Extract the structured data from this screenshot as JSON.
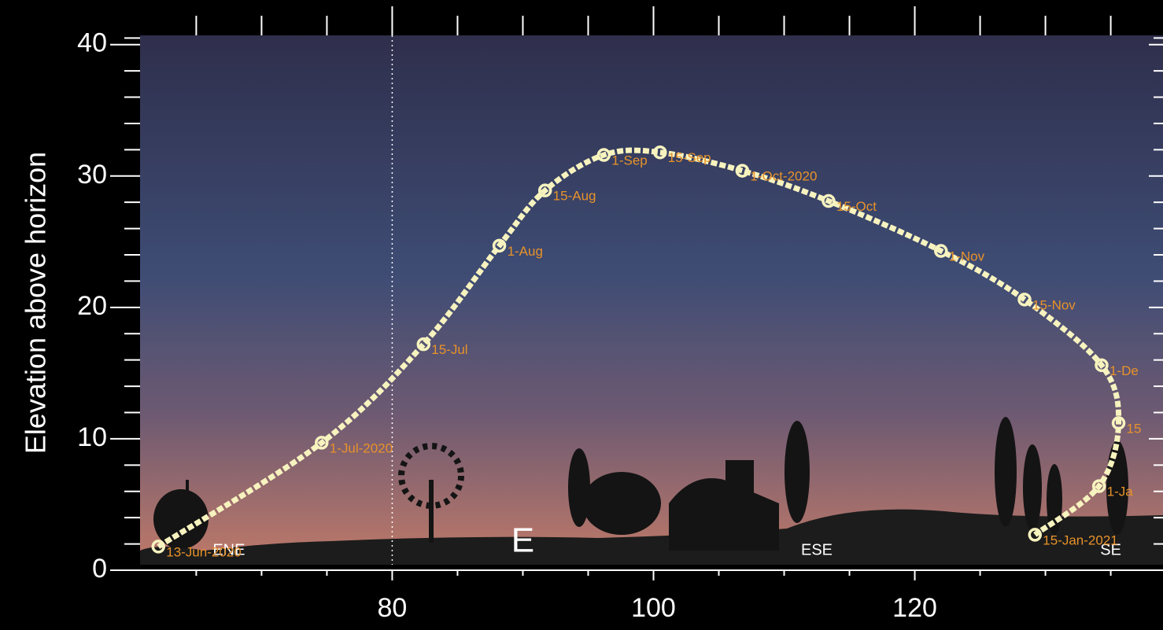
{
  "chart_data": {
    "type": "line",
    "ylabel": "Elevation above horizon",
    "xlim": [
      60.7,
      139
    ],
    "ylim": [
      0,
      40.7
    ],
    "xticks": [
      80,
      100,
      120
    ],
    "xminorticks": [
      65,
      70,
      75,
      85,
      90,
      95,
      105,
      110,
      115,
      125,
      130,
      135
    ],
    "yticks": [
      0,
      10,
      20,
      30,
      40
    ],
    "yminorticks": [
      2,
      4,
      6,
      8,
      12,
      14,
      16,
      18,
      22,
      24,
      26,
      28,
      32,
      34,
      36,
      38,
      40.5
    ],
    "vline": 80,
    "series": [
      {
        "name": null,
        "color": "#f7f3bf",
        "label_color": "#e8922a",
        "x": [
          62.1,
          74.6,
          82.4,
          88.2,
          91.7,
          96.2,
          100.5,
          106.8,
          113.4,
          122.0,
          128.4,
          134.3,
          135.6,
          134.1,
          129.2
        ],
        "values": [
          1.8,
          9.7,
          17.2,
          24.7,
          28.9,
          31.6,
          31.8,
          30.4,
          28.1,
          24.3,
          20.6,
          15.6,
          11.2,
          6.4,
          2.7
        ],
        "point_labels": [
          "13-Jun-2020",
          "1-Jul-2020",
          "15-Jul",
          "1-Aug",
          "15-Aug",
          "1-Sep",
          "15-Sep",
          "1-Oct-2020",
          "15-Oct",
          "1-Nov",
          "15-Nov",
          "1-De",
          "15",
          "1-Ja",
          "15-Jan-2021"
        ]
      }
    ],
    "annotations": [
      {
        "text": "ENE",
        "x": 67.5
      },
      {
        "text": "E",
        "x": 90
      },
      {
        "text": "ESE",
        "x": 112.5
      },
      {
        "text": "SE",
        "x": 135
      }
    ]
  }
}
